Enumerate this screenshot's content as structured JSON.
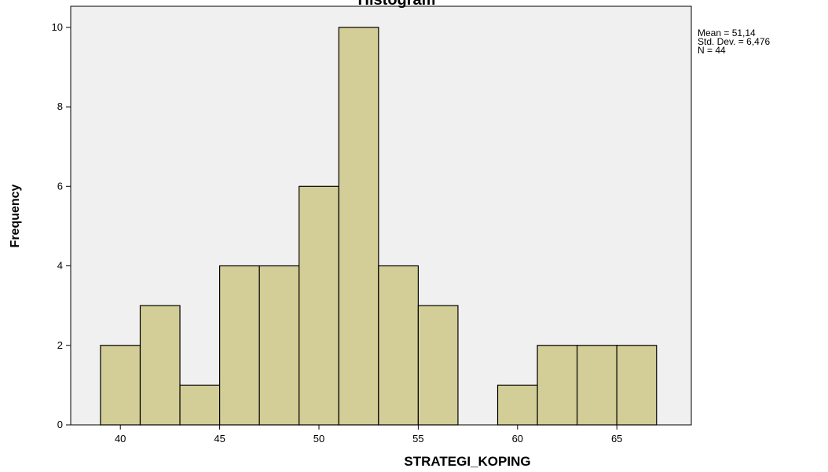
{
  "chart_data": {
    "type": "histogram",
    "title": "Histogram",
    "x_label": "STRATEGI_KOPING",
    "y_label": "Frequency",
    "bins": [
      39,
      41,
      43,
      45,
      47,
      49,
      51,
      53,
      55,
      57,
      59,
      61,
      63,
      65,
      67
    ],
    "values": [
      2,
      3,
      1,
      4,
      4,
      6,
      10,
      4,
      3,
      0,
      1,
      2,
      2,
      2
    ],
    "color": "#d3ce97",
    "xlim": [
      37.5,
      68.75
    ],
    "xticks": [
      40,
      45,
      50,
      55,
      60,
      65
    ],
    "ylim": [
      0,
      10.53
    ],
    "yticks": [
      0,
      2,
      4,
      6,
      8,
      10
    ],
    "annotations": [
      "Mean = 51,14",
      "Std. Dev. = 6,476",
      "N = 44"
    ]
  }
}
